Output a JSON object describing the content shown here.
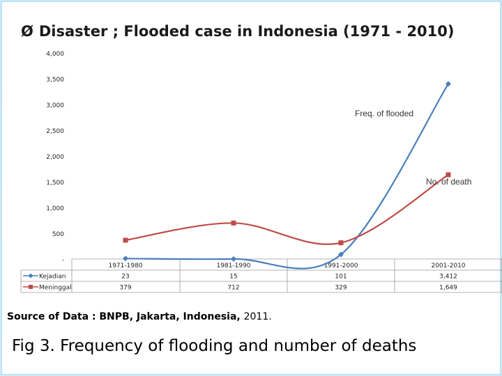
{
  "slide": {
    "title_marker": "Ø",
    "title": "Disaster ; Flooded case in Indonesia (1971 - 2010)",
    "source_label": "Source of Data : BNPB, Jakarta, Indonesia,",
    "source_year": "2011.",
    "caption": "Fig 3. Frequency of flooding and number of deaths"
  },
  "chart_data": {
    "type": "line",
    "categories": [
      "1971-1980",
      "1981-1990",
      "1991-2000",
      "2001-2010"
    ],
    "series": [
      {
        "name": "Kejadian",
        "values": [
          23,
          15,
          101,
          3412
        ],
        "color": "#4a7ebb",
        "marker": "diamond"
      },
      {
        "name": "Meninggal",
        "values": [
          379,
          712,
          329,
          1649
        ],
        "color": "#be4b48",
        "marker": "square"
      }
    ],
    "table": [
      [
        "23",
        "15",
        "101",
        "3,412"
      ],
      [
        "379",
        "712",
        "329",
        "1,649"
      ]
    ],
    "yticks": [
      "-",
      "500",
      "1,000",
      "1,500",
      "2,000",
      "2,500",
      "3,000",
      "3,500",
      "4,000"
    ],
    "ylim": [
      0,
      4000
    ],
    "annotations": [
      "Freq. of flooded",
      "No. of death"
    ],
    "grid": false,
    "legend": "data-table"
  }
}
